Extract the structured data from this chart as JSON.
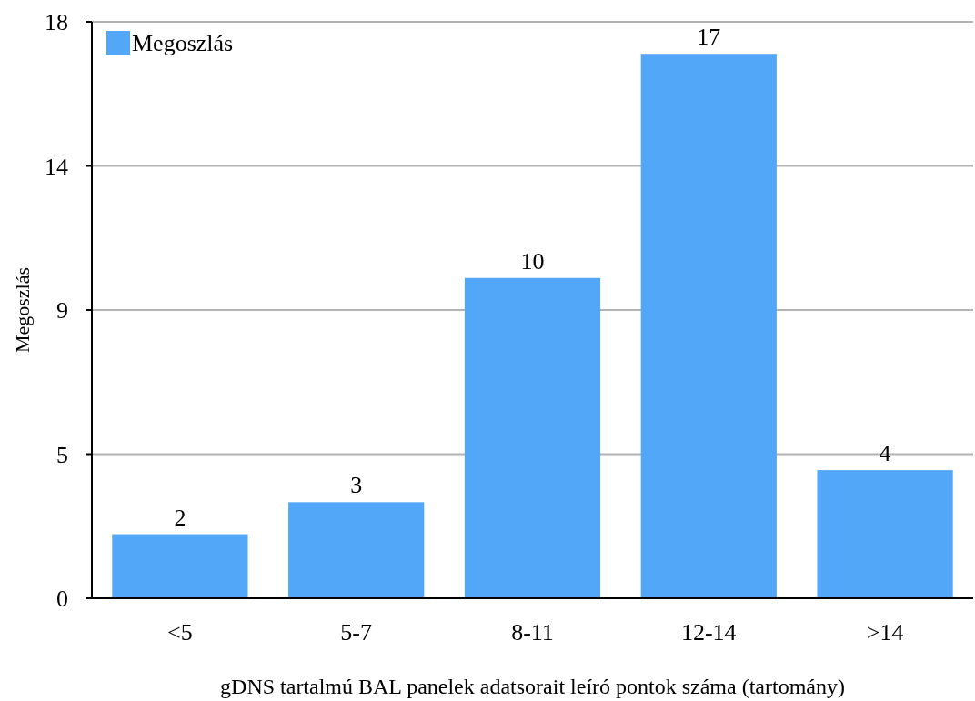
{
  "chart_data": {
    "type": "bar",
    "xlabel": "gDNS tartalmú BAL panelek adatsorait leíró pontok száma (tartomány)",
    "ylabel": "Megoszlás",
    "categories": [
      "<5",
      "5-7",
      "8-11",
      "12-14",
      ">14"
    ],
    "series": [
      {
        "name": "Megoszlás",
        "color": "#52a7f8",
        "values": [
          2,
          3,
          10,
          17,
          4
        ]
      }
    ],
    "ylim": [
      0,
      18
    ],
    "yticks": [
      0,
      {
        "value": 4.5,
        "label": "5"
      },
      9,
      {
        "value": 13.5,
        "label": "14"
      },
      18
    ],
    "grid": "y",
    "legend": "top left",
    "data_labels": true
  }
}
